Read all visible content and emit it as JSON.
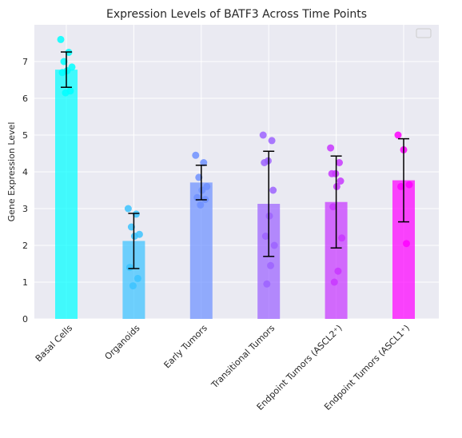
{
  "chart_data": {
    "type": "bar",
    "title": "Expression Levels of BATF3 Across Time Points",
    "xlabel": "",
    "ylabel": "Gene Expression Level",
    "ylim": [
      0,
      8
    ],
    "yticks": [
      0,
      1,
      2,
      3,
      4,
      5,
      6,
      7
    ],
    "grid": true,
    "legend": "top-right (empty)",
    "categories": [
      "Basal Cells",
      "Organoids",
      "Early Tumors",
      "Transitional Tumors",
      "Endpoint Tumors (ASCL2⁺)",
      "Endpoint Tumors (ASCL1⁺)"
    ],
    "values": [
      6.78,
      2.12,
      3.71,
      3.13,
      3.18,
      3.77
    ],
    "error": [
      0.48,
      0.75,
      0.47,
      1.43,
      1.25,
      1.13
    ],
    "colors": [
      "#00ffff",
      "#3cc3ff",
      "#6e91ff",
      "#9c63ff",
      "#c837ff",
      "#ff00ff"
    ],
    "points": [
      [
        7.6,
        7.25,
        7.0,
        6.85,
        6.75,
        6.7,
        6.2,
        6.15
      ],
      [
        3.0,
        2.85,
        2.5,
        2.3,
        2.25,
        1.4,
        1.1,
        0.9
      ],
      [
        4.45,
        4.25,
        3.85,
        3.6,
        3.5,
        3.3,
        3.25,
        3.1
      ],
      [
        5.0,
        4.85,
        4.3,
        4.25,
        3.5,
        2.8,
        2.25,
        2.0,
        1.45,
        0.95
      ],
      [
        4.65,
        4.25,
        3.95,
        3.95,
        3.75,
        3.6,
        3.05,
        2.2,
        1.3,
        1.0
      ],
      [
        5.0,
        4.6,
        3.65,
        3.6,
        2.05
      ]
    ]
  }
}
